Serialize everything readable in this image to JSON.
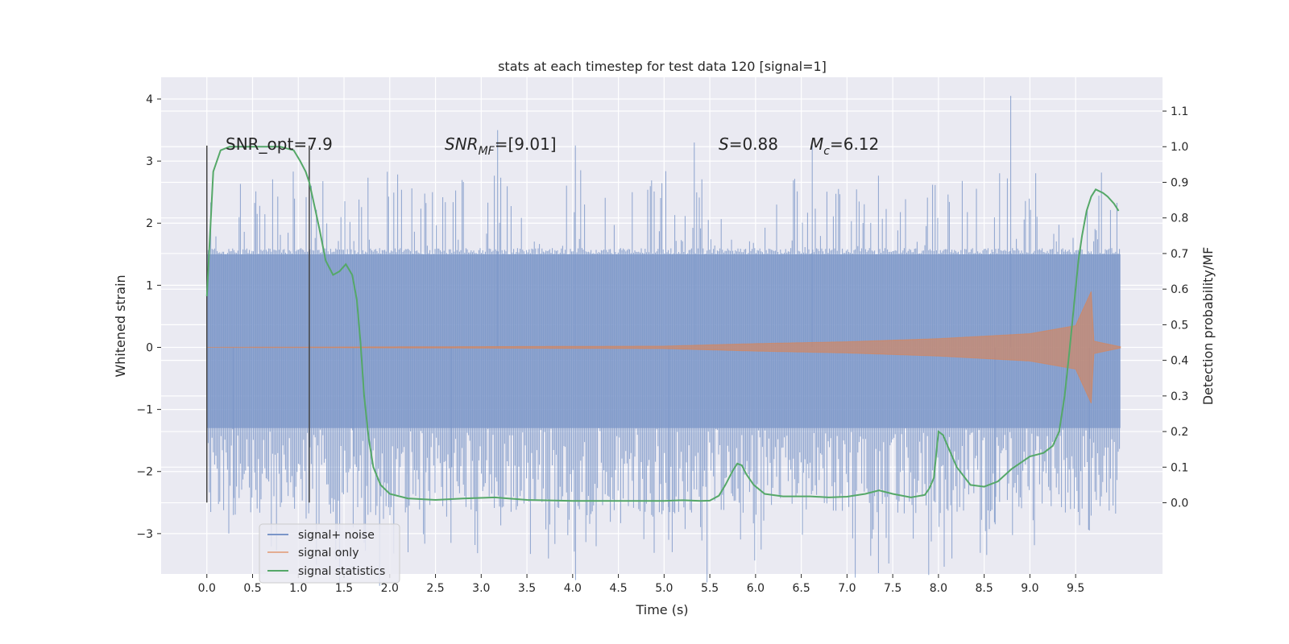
{
  "chart_data": {
    "type": "line",
    "title": "stats at each timestep for test data 120 [signal=1]",
    "xlabel": "Time (s)",
    "ylabel_left": "Whitened strain",
    "ylabel_right": "Detection probability/MF",
    "xlim": [
      -0.5,
      10.45
    ],
    "ylim_left": [
      -3.65,
      4.35
    ],
    "ylim_right": [
      -0.2,
      1.195
    ],
    "x_ticks": [
      "0.0",
      "0.5",
      "1.0",
      "1.5",
      "2.0",
      "2.5",
      "3.0",
      "3.5",
      "4.0",
      "4.5",
      "5.0",
      "5.5",
      "6.0",
      "6.5",
      "7.0",
      "7.5",
      "8.0",
      "8.5",
      "9.0",
      "9.5"
    ],
    "y_ticks_left": [
      "−3",
      "−2",
      "−1",
      "0",
      "1",
      "2",
      "3",
      "4"
    ],
    "y_ticks_right": [
      "0.0",
      "0.1",
      "0.2",
      "0.3",
      "0.4",
      "0.5",
      "0.6",
      "0.7",
      "0.8",
      "0.9",
      "1.0",
      "1.1"
    ],
    "grid": true,
    "legend_position": "lower-left",
    "annotations": {
      "snr_opt": "SNR_opt=7.9",
      "snr_mf_base": "SNR",
      "snr_mf_sub": "MF",
      "snr_mf_value": "=[9.01]",
      "s_var": "S",
      "s_value": "=0.88",
      "mc_var": "M",
      "mc_sub": "c",
      "mc_value": "=6.12"
    },
    "markers": [
      {
        "x": 0.0,
        "y_range": [
          -2.5,
          3.25
        ],
        "description": "start marker"
      },
      {
        "x": 1.12,
        "y_range": [
          -2.5,
          3.25
        ],
        "description": "end marker"
      }
    ],
    "series": [
      {
        "name": "signal+ noise",
        "color": "#7b96c8",
        "axis": "left",
        "style": "noise-band",
        "x_range": [
          0.0,
          9.99
        ],
        "envelope_core": [
          -1.3,
          1.5
        ],
        "typical_peak_range": [
          1.6,
          2.9
        ],
        "notable_peaks": [
          {
            "x": 3.18,
            "y": 3.5
          },
          {
            "x": 5.33,
            "y": 3.3
          },
          {
            "x": 8.79,
            "y": 4.05
          },
          {
            "x": 4.03,
            "y": 3.25
          },
          {
            "x": 6.62,
            "y": 3.25
          },
          {
            "x": 2.2,
            "y": -3.3
          },
          {
            "x": 2.67,
            "y": -3.15
          },
          {
            "x": 5.05,
            "y": -3.1
          },
          {
            "x": 9.65,
            "y": -2.95
          },
          {
            "x": 8.62,
            "y": -2.85
          },
          {
            "x": 1.6,
            "y": -2.9
          },
          {
            "x": 0.29,
            "y": -2.7
          }
        ]
      },
      {
        "name": "signal only",
        "color": "#dd8452",
        "axis": "left",
        "style": "chirp",
        "x_range": [
          0.0,
          9.99
        ],
        "merger_time": 9.67,
        "amplitude_points": [
          {
            "x": 0.0,
            "y": 0.0
          },
          {
            "x": 5.0,
            "y": 0.02
          },
          {
            "x": 6.0,
            "y": 0.06
          },
          {
            "x": 7.0,
            "y": 0.09
          },
          {
            "x": 8.0,
            "y": 0.14
          },
          {
            "x": 9.0,
            "y": 0.22
          },
          {
            "x": 9.5,
            "y": 0.35
          },
          {
            "x": 9.67,
            "y": 0.9
          },
          {
            "x": 9.7,
            "y": 0.1
          },
          {
            "x": 9.99,
            "y": 0.01
          }
        ]
      },
      {
        "name": "signal statistics",
        "color": "#55a868",
        "axis": "right",
        "x": [
          0.0,
          0.07,
          0.15,
          0.25,
          0.4,
          0.6,
          0.8,
          0.95,
          1.02,
          1.08,
          1.12,
          1.18,
          1.23,
          1.3,
          1.38,
          1.45,
          1.52,
          1.59,
          1.64,
          1.68,
          1.72,
          1.77,
          1.82,
          1.9,
          2.0,
          2.2,
          2.5,
          2.8,
          3.15,
          3.5,
          4.0,
          4.5,
          5.0,
          5.2,
          5.4,
          5.5,
          5.6,
          5.67,
          5.75,
          5.8,
          5.85,
          5.9,
          5.98,
          6.1,
          6.3,
          6.6,
          6.8,
          7.0,
          7.2,
          7.35,
          7.5,
          7.7,
          7.85,
          7.9,
          7.95,
          8.0,
          8.05,
          8.1,
          8.2,
          8.35,
          8.5,
          8.65,
          8.8,
          9.0,
          9.15,
          9.25,
          9.32,
          9.38,
          9.43,
          9.48,
          9.53,
          9.57,
          9.62,
          9.67,
          9.72,
          9.8,
          9.85,
          9.92,
          9.97
        ],
        "y": [
          0.58,
          0.93,
          0.99,
          1.0,
          1.0,
          1.0,
          1.0,
          0.99,
          0.96,
          0.93,
          0.9,
          0.83,
          0.77,
          0.68,
          0.64,
          0.65,
          0.67,
          0.64,
          0.57,
          0.45,
          0.3,
          0.18,
          0.1,
          0.05,
          0.025,
          0.012,
          0.008,
          0.012,
          0.015,
          0.008,
          0.005,
          0.005,
          0.005,
          0.007,
          0.005,
          0.006,
          0.02,
          0.05,
          0.09,
          0.11,
          0.105,
          0.08,
          0.05,
          0.025,
          0.018,
          0.018,
          0.015,
          0.017,
          0.025,
          0.035,
          0.025,
          0.015,
          0.022,
          0.04,
          0.07,
          0.2,
          0.19,
          0.16,
          0.1,
          0.05,
          0.045,
          0.06,
          0.095,
          0.13,
          0.14,
          0.16,
          0.2,
          0.3,
          0.42,
          0.55,
          0.68,
          0.75,
          0.82,
          0.86,
          0.88,
          0.87,
          0.86,
          0.84,
          0.82
        ]
      }
    ]
  }
}
